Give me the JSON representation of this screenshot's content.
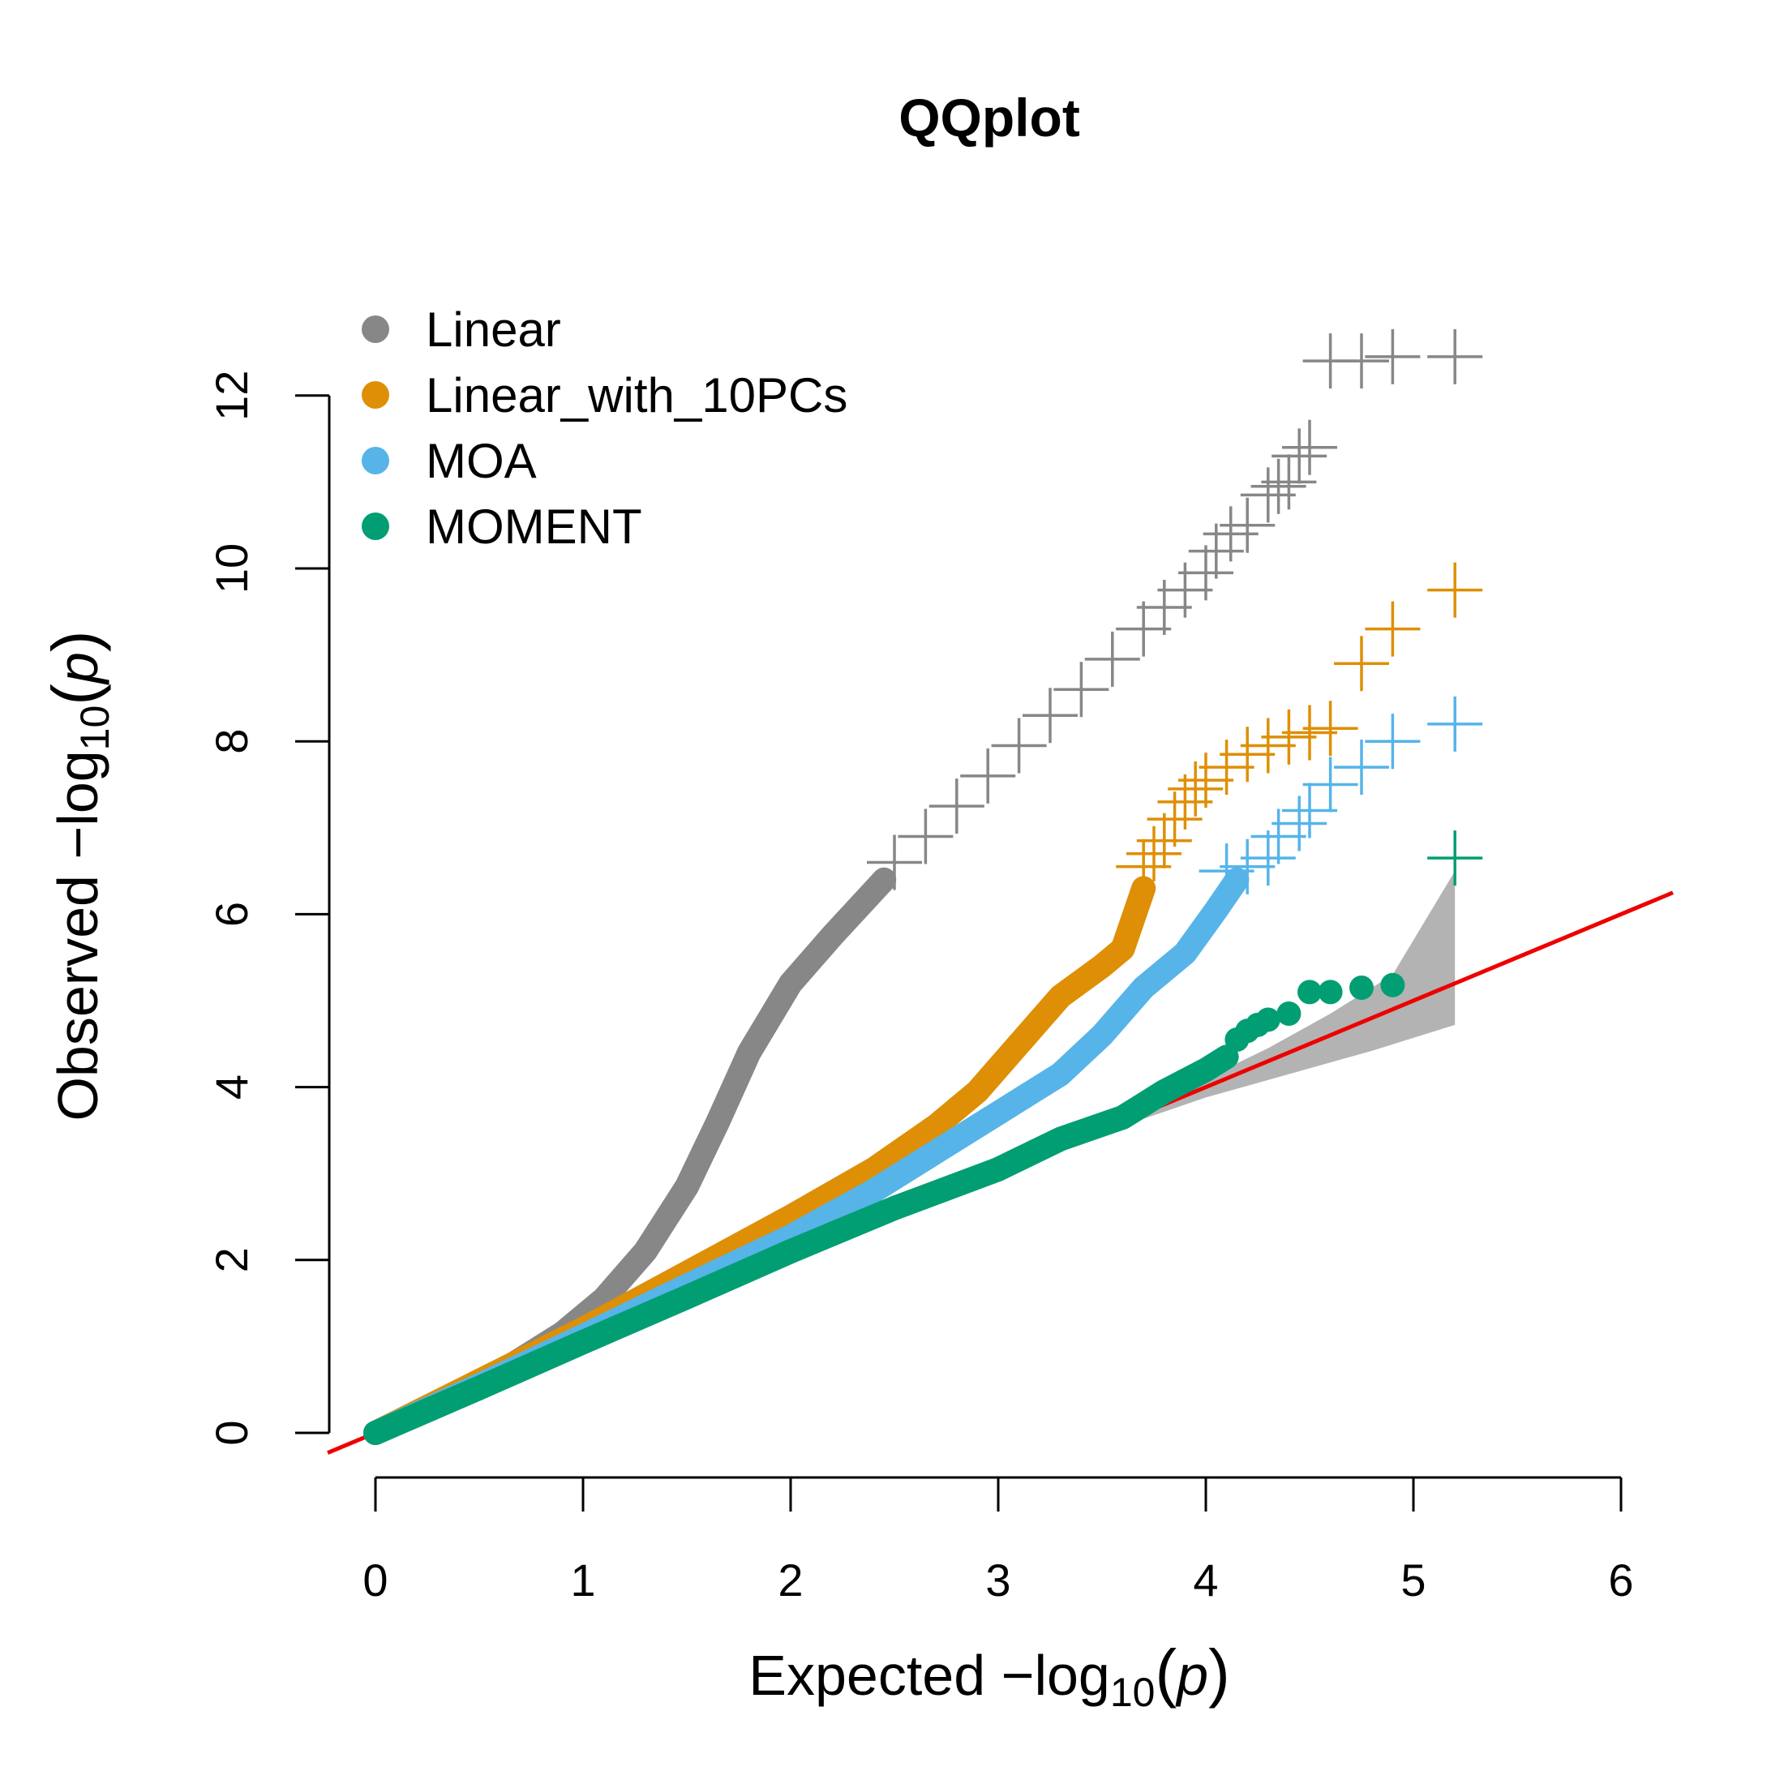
{
  "chart_data": {
    "type": "scatter",
    "title": "QQplot",
    "xlabel": "Expected  −log",
    "ylabel": "Observed  −log",
    "label_subscript": "10",
    "label_variable": "p",
    "xlim": [
      0,
      6
    ],
    "ylim": [
      0,
      12
    ],
    "x_ticks": [
      "0",
      "1",
      "2",
      "3",
      "4",
      "5",
      "6"
    ],
    "y_ticks": [
      "0",
      "2",
      "4",
      "6",
      "8",
      "10",
      "12"
    ],
    "legend_position": "top-left",
    "reference_line": {
      "color": "#ee0000",
      "slope": 1,
      "intercept": 0
    },
    "confidence_band": {
      "color": "#b3b3b3",
      "upper": [
        [
          3.2,
          3.2
        ],
        [
          3.6,
          3.62
        ],
        [
          4.0,
          4.1
        ],
        [
          4.3,
          4.45
        ],
        [
          4.6,
          4.85
        ],
        [
          4.9,
          5.3
        ],
        [
          5.2,
          6.5
        ]
      ],
      "lower": [
        [
          3.2,
          3.2
        ],
        [
          3.6,
          3.55
        ],
        [
          4.0,
          3.88
        ],
        [
          4.4,
          4.15
        ],
        [
          4.8,
          4.42
        ],
        [
          5.2,
          4.72
        ]
      ]
    },
    "series": [
      {
        "name": "Linear",
        "color": "#878787",
        "curve": [
          [
            0,
            0
          ],
          [
            0.3,
            0.32
          ],
          [
            0.6,
            0.7
          ],
          [
            0.9,
            1.15
          ],
          [
            1.1,
            1.55
          ],
          [
            1.3,
            2.1
          ],
          [
            1.5,
            2.85
          ],
          [
            1.65,
            3.6
          ],
          [
            1.8,
            4.4
          ],
          [
            2.0,
            5.2
          ],
          [
            2.2,
            5.75
          ],
          [
            2.45,
            6.4
          ]
        ],
        "crosses": [
          [
            2.5,
            6.6
          ],
          [
            2.65,
            6.9
          ],
          [
            2.8,
            7.25
          ],
          [
            2.95,
            7.6
          ],
          [
            3.1,
            7.95
          ],
          [
            3.25,
            8.3
          ],
          [
            3.4,
            8.6
          ],
          [
            3.55,
            8.95
          ],
          [
            3.7,
            9.3
          ],
          [
            3.8,
            9.55
          ],
          [
            3.9,
            9.75
          ],
          [
            4.0,
            9.95
          ],
          [
            4.05,
            10.2
          ],
          [
            4.12,
            10.4
          ],
          [
            4.2,
            10.5
          ],
          [
            4.3,
            10.85
          ],
          [
            4.35,
            10.95
          ],
          [
            4.4,
            11.0
          ],
          [
            4.45,
            11.3
          ],
          [
            4.5,
            11.4
          ],
          [
            4.6,
            12.4
          ],
          [
            4.75,
            12.4
          ],
          [
            4.9,
            12.45
          ],
          [
            5.2,
            12.45
          ]
        ]
      },
      {
        "name": "Linear_with_10PCs",
        "color": "#de8f05",
        "curve": [
          [
            0,
            0
          ],
          [
            0.5,
            0.6
          ],
          [
            1.0,
            1.2
          ],
          [
            1.5,
            1.85
          ],
          [
            2.0,
            2.5
          ],
          [
            2.4,
            3.05
          ],
          [
            2.7,
            3.55
          ],
          [
            2.9,
            3.95
          ],
          [
            3.1,
            4.5
          ],
          [
            3.3,
            5.05
          ],
          [
            3.5,
            5.4
          ],
          [
            3.6,
            5.6
          ],
          [
            3.65,
            5.95
          ],
          [
            3.7,
            6.3
          ]
        ],
        "crosses": [
          [
            3.7,
            6.55
          ],
          [
            3.75,
            6.7
          ],
          [
            3.8,
            6.85
          ],
          [
            3.85,
            7.1
          ],
          [
            3.9,
            7.3
          ],
          [
            3.95,
            7.45
          ],
          [
            4.0,
            7.55
          ],
          [
            4.1,
            7.7
          ],
          [
            4.2,
            7.85
          ],
          [
            4.3,
            7.95
          ],
          [
            4.4,
            8.05
          ],
          [
            4.5,
            8.1
          ],
          [
            4.6,
            8.15
          ],
          [
            4.75,
            8.9
          ],
          [
            4.9,
            9.3
          ],
          [
            5.2,
            9.75
          ]
        ]
      },
      {
        "name": "MOA",
        "color": "#56b4e9",
        "curve": [
          [
            0,
            0
          ],
          [
            0.5,
            0.55
          ],
          [
            1.0,
            1.12
          ],
          [
            1.5,
            1.7
          ],
          [
            2.0,
            2.27
          ],
          [
            2.4,
            2.8
          ],
          [
            2.7,
            3.25
          ],
          [
            3.0,
            3.7
          ],
          [
            3.3,
            4.15
          ],
          [
            3.5,
            4.6
          ],
          [
            3.7,
            5.15
          ],
          [
            3.9,
            5.55
          ],
          [
            4.05,
            6.05
          ],
          [
            4.15,
            6.4
          ]
        ],
        "crosses": [
          [
            4.1,
            6.5
          ],
          [
            4.2,
            6.55
          ],
          [
            4.3,
            6.65
          ],
          [
            4.35,
            6.9
          ],
          [
            4.45,
            7.05
          ],
          [
            4.5,
            7.2
          ],
          [
            4.6,
            7.5
          ],
          [
            4.75,
            7.7
          ],
          [
            4.9,
            8.0
          ],
          [
            5.2,
            8.2
          ]
        ]
      },
      {
        "name": "MOMENT",
        "color": "#029e73",
        "curve": [
          [
            0,
            0
          ],
          [
            0.5,
            0.52
          ],
          [
            1.0,
            1.05
          ],
          [
            1.5,
            1.57
          ],
          [
            2.0,
            2.1
          ],
          [
            2.5,
            2.6
          ],
          [
            3.0,
            3.05
          ],
          [
            3.3,
            3.4
          ],
          [
            3.6,
            3.65
          ],
          [
            3.8,
            3.95
          ],
          [
            4.0,
            4.2
          ],
          [
            4.1,
            4.35
          ]
        ],
        "points": [
          [
            4.15,
            4.55
          ],
          [
            4.2,
            4.65
          ],
          [
            4.25,
            4.72
          ],
          [
            4.3,
            4.78
          ],
          [
            4.4,
            4.85
          ],
          [
            4.5,
            5.1
          ],
          [
            4.6,
            5.1
          ],
          [
            4.75,
            5.15
          ],
          [
            4.9,
            5.18
          ]
        ],
        "crosses": [
          [
            5.2,
            6.65
          ]
        ]
      }
    ]
  }
}
